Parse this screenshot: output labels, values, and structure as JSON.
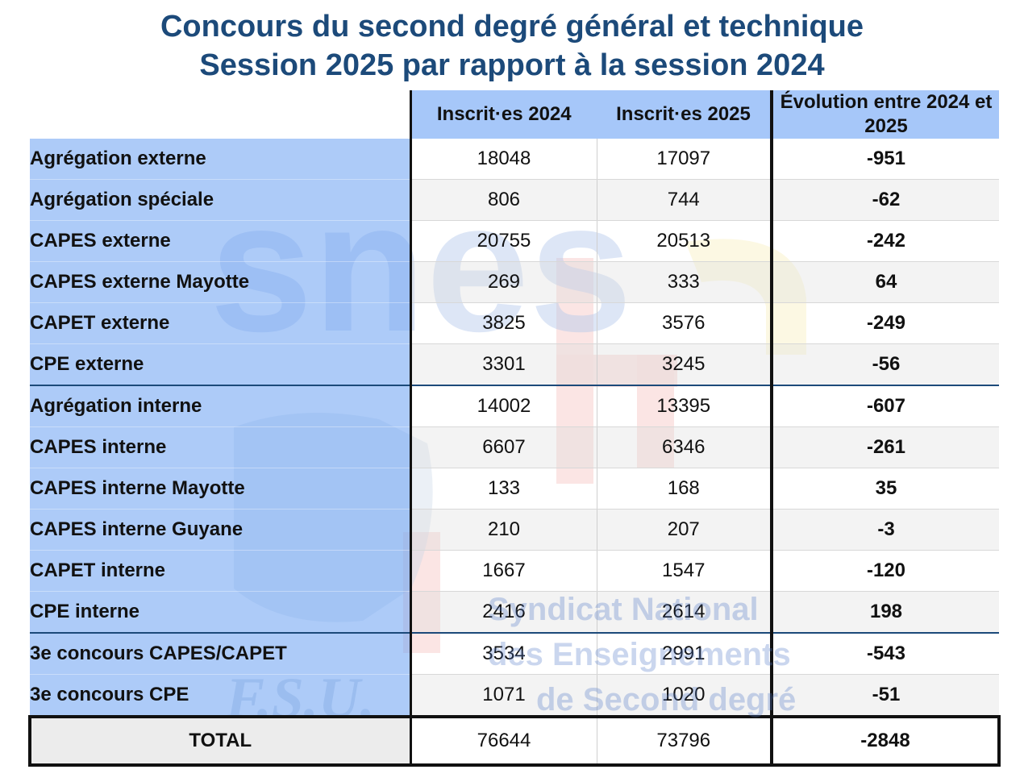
{
  "title": {
    "line1": "Concours du second degré général et technique",
    "line2": "Session 2025 par rapport à la session 2024"
  },
  "table": {
    "headers": [
      "Inscrit·es 2024",
      "Inscrit·es 2025",
      "Évolution entre 2024 et 2025"
    ],
    "rows": [
      {
        "label": "Agrégation externe",
        "y2024": "18048",
        "y2025": "17097",
        "diff": "-951"
      },
      {
        "label": "Agrégation spéciale",
        "y2024": "806",
        "y2025": "744",
        "diff": "-62"
      },
      {
        "label": "CAPES externe",
        "y2024": "20755",
        "y2025": "20513",
        "diff": "-242"
      },
      {
        "label": "CAPES externe Mayotte",
        "y2024": "269",
        "y2025": "333",
        "diff": "64"
      },
      {
        "label": "CAPET externe",
        "y2024": "3825",
        "y2025": "3576",
        "diff": "-249"
      },
      {
        "label": "CPE externe",
        "y2024": "3301",
        "y2025": "3245",
        "diff": "-56"
      },
      {
        "label": "Agrégation interne",
        "y2024": "14002",
        "y2025": "13395",
        "diff": "-607"
      },
      {
        "label": "CAPES interne",
        "y2024": "6607",
        "y2025": "6346",
        "diff": "-261"
      },
      {
        "label": "CAPES interne Mayotte",
        "y2024": "133",
        "y2025": "168",
        "diff": "35"
      },
      {
        "label": "CAPES interne Guyane",
        "y2024": "210",
        "y2025": "207",
        "diff": "-3"
      },
      {
        "label": "CAPET interne",
        "y2024": "1667",
        "y2025": "1547",
        "diff": "-120"
      },
      {
        "label": "CPE interne",
        "y2024": "2416",
        "y2025": "2614",
        "diff": "198"
      },
      {
        "label": "3e concours CAPES/CAPET",
        "y2024": "3534",
        "y2025": "2991",
        "diff": "-543"
      },
      {
        "label": "3e concours CPE",
        "y2024": "1071",
        "y2025": "1020",
        "diff": "-51"
      }
    ],
    "total": {
      "label": "TOTAL",
      "y2024": "76644",
      "y2025": "73796",
      "diff": "-2848"
    }
  },
  "watermark": {
    "logo_text": "snes",
    "fsu_text": "F.S.U.",
    "line1": "Syndicat National",
    "line2": "des Enseignements",
    "line3": "de Second degré"
  },
  "colors": {
    "title": "#1c4a7a",
    "header_bg": "#9ec2f8",
    "label_bg": "#96bcf6",
    "diff_text": "#e0332a"
  }
}
